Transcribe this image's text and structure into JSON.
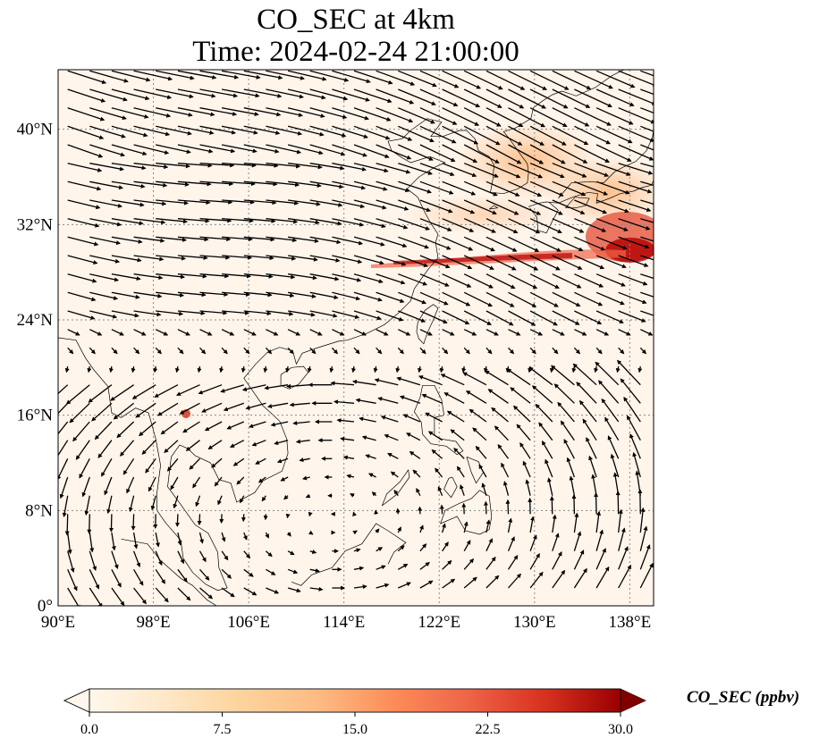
{
  "title": {
    "line1": "CO_SEC at 4km",
    "line2": "Time: 2024-02-24 21:00:00"
  },
  "map": {
    "extent": {
      "lon_min": 90,
      "lon_max": 140,
      "lat_min": 0,
      "lat_max": 45
    },
    "lon_ticks": [
      {
        "value": 90,
        "label": "90°E"
      },
      {
        "value": 98,
        "label": "98°E"
      },
      {
        "value": 106,
        "label": "106°E"
      },
      {
        "value": 114,
        "label": "114°E"
      },
      {
        "value": 122,
        "label": "122°E"
      },
      {
        "value": 130,
        "label": "130°E"
      },
      {
        "value": 138,
        "label": "138°E"
      }
    ],
    "lat_ticks": [
      {
        "value": 0,
        "label": "0°"
      },
      {
        "value": 8,
        "label": "8°N"
      },
      {
        "value": 16,
        "label": "16°N"
      },
      {
        "value": 24,
        "label": "24°N"
      },
      {
        "value": 32,
        "label": "32°N"
      },
      {
        "value": 40,
        "label": "40°N"
      }
    ],
    "gridlines": true,
    "background_color": "#fff5eb",
    "arrow_color": "#000000",
    "coastline_color": "#000000"
  },
  "colorbar": {
    "label": "CO_SEC (ppbv)",
    "min": 0,
    "max": 30,
    "extend": "both",
    "colormap": "OrRd",
    "ticks": [
      {
        "value": 0,
        "label": "0.0"
      },
      {
        "value": 7.5,
        "label": "7.5"
      },
      {
        "value": 15,
        "label": "15.0"
      },
      {
        "value": 22.5,
        "label": "22.5"
      },
      {
        "value": 30,
        "label": "30.0"
      }
    ]
  }
}
